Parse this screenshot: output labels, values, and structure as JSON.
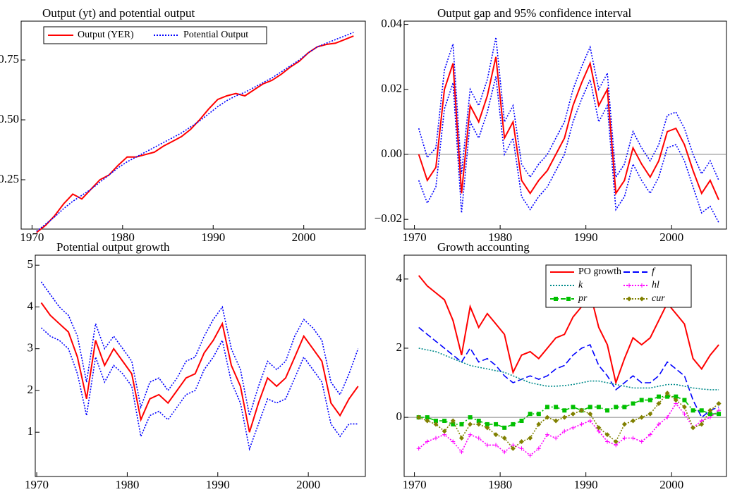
{
  "chart_data": [
    {
      "type": "line",
      "title": "Output (yt) and potential output",
      "legend": "upper left",
      "x": [
        1970.5,
        1971.5,
        1972.5,
        1973.5,
        1974.5,
        1975.5,
        1976.5,
        1977.5,
        1978.5,
        1979.5,
        1980.5,
        1981.5,
        1982.5,
        1983.5,
        1984.5,
        1985.5,
        1986.5,
        1987.5,
        1988.5,
        1989.5,
        1990.5,
        1991.5,
        1992.5,
        1993.5,
        1994.5,
        1995.5,
        1996.5,
        1997.5,
        1998.5,
        1999.5,
        2000.5,
        2001.5,
        2002.5,
        2003.5,
        2004.5,
        2005.5
      ],
      "xlim": [
        1968.8,
        2006.8
      ],
      "xticks": [
        1970,
        1980,
        1990,
        2000
      ],
      "ylim": [
        0.044,
        0.912
      ],
      "yticks": [
        0.25,
        {
          "value": 0.5,
          "label": "0.50"
        },
        0.75
      ],
      "series": [
        {
          "name": "Output (YER)",
          "color": "#ff0000",
          "style": "solid",
          "values": [
            0.03,
            0.06,
            0.1,
            0.15,
            0.19,
            0.17,
            0.21,
            0.25,
            0.27,
            0.31,
            0.345,
            0.345,
            0.355,
            0.365,
            0.39,
            0.41,
            0.43,
            0.46,
            0.5,
            0.545,
            0.585,
            0.6,
            0.61,
            0.6,
            0.625,
            0.65,
            0.665,
            0.69,
            0.72,
            0.745,
            0.78,
            0.805,
            0.815,
            0.82,
            0.835,
            0.85
          ]
        },
        {
          "name": "Potential Output",
          "color": "#0000ff",
          "style": "dotted",
          "values": [
            0.035,
            0.065,
            0.095,
            0.13,
            0.16,
            0.185,
            0.21,
            0.24,
            0.27,
            0.3,
            0.325,
            0.345,
            0.365,
            0.385,
            0.405,
            0.425,
            0.445,
            0.47,
            0.495,
            0.525,
            0.555,
            0.58,
            0.6,
            0.615,
            0.635,
            0.655,
            0.675,
            0.7,
            0.725,
            0.75,
            0.78,
            0.805,
            0.82,
            0.835,
            0.85,
            0.865
          ]
        }
      ]
    },
    {
      "type": "line",
      "title": "Output gap and 95% confidence interval",
      "hline": 0,
      "x": [
        1970.5,
        1971.5,
        1972.5,
        1973.5,
        1974.5,
        1975.5,
        1976.5,
        1977.5,
        1978.5,
        1979.5,
        1980.5,
        1981.5,
        1982.5,
        1983.5,
        1984.5,
        1985.5,
        1986.5,
        1987.5,
        1988.5,
        1989.5,
        1990.5,
        1991.5,
        1992.5,
        1993.5,
        1994.5,
        1995.5,
        1996.5,
        1997.5,
        1998.5,
        1999.5,
        2000.5,
        2001.5,
        2002.5,
        2003.5,
        2004.5,
        2005.5
      ],
      "xlim": [
        1968.8,
        2006.4
      ],
      "xticks": [
        1970,
        1980,
        1990,
        2000
      ],
      "ylim": [
        -0.023,
        0.041
      ],
      "yticks": [
        {
          "value": -0.02,
          "label": "−0.02"
        },
        {
          "value": 0,
          "label": "0.00"
        },
        0.02,
        0.04
      ],
      "series": [
        {
          "color": "#ff0000",
          "style": "solid",
          "values": [
            0.0,
            -0.008,
            -0.004,
            0.02,
            0.028,
            -0.012,
            0.015,
            0.01,
            0.018,
            0.03,
            0.005,
            0.01,
            -0.008,
            -0.012,
            -0.008,
            -0.005,
            0.0,
            0.005,
            0.015,
            0.022,
            0.028,
            0.015,
            0.02,
            -0.012,
            -0.008,
            0.002,
            -0.003,
            -0.007,
            -0.002,
            0.007,
            0.008,
            0.003,
            -0.005,
            -0.012,
            -0.008,
            -0.014
          ]
        },
        {
          "color": "#0000ff",
          "style": "dotted",
          "values": [
            0.008,
            -0.001,
            0.002,
            0.026,
            0.034,
            -0.006,
            0.02,
            0.015,
            0.023,
            0.036,
            0.01,
            0.015,
            -0.003,
            -0.007,
            -0.003,
            0.0,
            0.005,
            0.01,
            0.02,
            0.027,
            0.033,
            0.02,
            0.025,
            -0.007,
            -0.003,
            0.007,
            0.002,
            -0.002,
            0.003,
            0.012,
            0.013,
            0.008,
            0.0,
            -0.006,
            -0.002,
            -0.008
          ]
        },
        {
          "color": "#0000ff",
          "style": "dotted",
          "values": [
            -0.008,
            -0.015,
            -0.01,
            0.014,
            0.022,
            -0.018,
            0.01,
            0.005,
            0.013,
            0.024,
            0.0,
            0.005,
            -0.013,
            -0.017,
            -0.013,
            -0.01,
            -0.005,
            0.0,
            0.01,
            0.017,
            0.023,
            0.01,
            0.015,
            -0.017,
            -0.013,
            -0.003,
            -0.008,
            -0.012,
            -0.007,
            0.002,
            0.003,
            -0.002,
            -0.01,
            -0.018,
            -0.016,
            -0.021
          ]
        }
      ]
    },
    {
      "type": "line",
      "title": "Potential output growth",
      "x": [
        1970.5,
        1971.5,
        1972.5,
        1973.5,
        1974.5,
        1975.5,
        1976.5,
        1977.5,
        1978.5,
        1979.5,
        1980.5,
        1981.5,
        1982.5,
        1983.5,
        1984.5,
        1985.5,
        1986.5,
        1987.5,
        1988.5,
        1989.5,
        1990.5,
        1991.5,
        1992.5,
        1993.5,
        1994.5,
        1995.5,
        1996.5,
        1997.5,
        1998.5,
        1999.5,
        2000.5,
        2001.5,
        2002.5,
        2003.5,
        2004.5,
        2005.5
      ],
      "xlim": [
        1969.84,
        2006.3
      ],
      "xticks": [
        1970,
        1980,
        1990,
        2000
      ],
      "ylim": [
        -0.06,
        5.24
      ],
      "yticks": [
        1,
        2,
        3,
        4,
        5
      ],
      "series": [
        {
          "color": "#ff0000",
          "style": "solid",
          "values": [
            4.1,
            3.8,
            3.6,
            3.4,
            2.8,
            1.8,
            3.2,
            2.6,
            3.0,
            2.7,
            2.4,
            1.3,
            1.8,
            1.9,
            1.7,
            2.0,
            2.3,
            2.4,
            2.9,
            3.2,
            3.6,
            2.6,
            2.1,
            1.0,
            1.7,
            2.3,
            2.1,
            2.3,
            2.8,
            3.3,
            3.0,
            2.7,
            1.7,
            1.4,
            1.8,
            2.1
          ]
        },
        {
          "color": "#0000ff",
          "style": "dotted",
          "values": [
            4.6,
            4.3,
            4.0,
            3.8,
            3.3,
            2.2,
            3.6,
            3.0,
            3.3,
            3.0,
            2.7,
            1.6,
            2.2,
            2.3,
            2.0,
            2.3,
            2.7,
            2.8,
            3.3,
            3.7,
            4.0,
            3.0,
            2.5,
            1.4,
            2.1,
            2.7,
            2.5,
            2.7,
            3.3,
            3.7,
            3.5,
            3.2,
            2.2,
            1.9,
            2.4,
            3.0
          ]
        },
        {
          "color": "#0000ff",
          "style": "dotted",
          "values": [
            3.5,
            3.3,
            3.2,
            3.0,
            2.4,
            1.4,
            2.8,
            2.2,
            2.6,
            2.4,
            2.1,
            0.9,
            1.4,
            1.5,
            1.3,
            1.6,
            1.9,
            2.0,
            2.5,
            2.8,
            3.2,
            2.2,
            1.7,
            0.6,
            1.2,
            1.8,
            1.7,
            1.8,
            2.3,
            2.8,
            2.5,
            2.2,
            1.2,
            0.9,
            1.2,
            1.2
          ]
        }
      ]
    },
    {
      "type": "line",
      "title": "Growth accounting",
      "hline": 0,
      "legend": "upper right",
      "x": [
        1970.5,
        1971.5,
        1972.5,
        1973.5,
        1974.5,
        1975.5,
        1976.5,
        1977.5,
        1978.5,
        1979.5,
        1980.5,
        1981.5,
        1982.5,
        1983.5,
        1984.5,
        1985.5,
        1986.5,
        1987.5,
        1988.5,
        1989.5,
        1990.5,
        1991.5,
        1992.5,
        1993.5,
        1994.5,
        1995.5,
        1996.5,
        1997.5,
        1998.5,
        1999.5,
        2000.5,
        2001.5,
        2002.5,
        2003.5,
        2004.5,
        2005.5
      ],
      "xlim": [
        1968.8,
        2006.4
      ],
      "xticks": [
        1970,
        1980,
        1990,
        2000
      ],
      "ylim": [
        -1.71,
        4.69
      ],
      "yticks": [
        0,
        2,
        4
      ],
      "series": [
        {
          "name": "PO growth",
          "color": "#ff0000",
          "style": "solid",
          "values": [
            4.1,
            3.8,
            3.6,
            3.4,
            2.8,
            1.8,
            3.2,
            2.6,
            3.0,
            2.7,
            2.4,
            1.3,
            1.8,
            1.9,
            1.7,
            2.0,
            2.3,
            2.4,
            2.9,
            3.2,
            3.6,
            2.6,
            2.1,
            1.0,
            1.7,
            2.3,
            2.1,
            2.3,
            2.8,
            3.3,
            3.0,
            2.7,
            1.7,
            1.4,
            1.8,
            2.1
          ]
        },
        {
          "name": "f",
          "color": "#0000ff",
          "style": "dashed",
          "values": [
            2.6,
            2.4,
            2.2,
            2.0,
            1.8,
            1.6,
            2.0,
            1.6,
            1.7,
            1.5,
            1.2,
            1.0,
            1.1,
            1.2,
            1.1,
            1.2,
            1.4,
            1.5,
            1.8,
            2.0,
            2.1,
            1.5,
            1.2,
            0.8,
            1.0,
            1.2,
            1.0,
            1.0,
            1.2,
            1.6,
            1.4,
            1.2,
            0.5,
            0.0,
            0.2,
            0.3
          ]
        },
        {
          "name": "k",
          "color": "#008b8b",
          "style": "dotted",
          "values": [
            2.0,
            1.95,
            1.9,
            1.8,
            1.7,
            1.6,
            1.5,
            1.45,
            1.4,
            1.35,
            1.3,
            1.2,
            1.1,
            1.0,
            0.95,
            0.9,
            0.9,
            0.92,
            0.95,
            1.0,
            1.05,
            1.05,
            1.0,
            0.95,
            0.9,
            0.85,
            0.85,
            0.85,
            0.9,
            0.95,
            0.95,
            0.9,
            0.85,
            0.82,
            0.8,
            0.8
          ]
        },
        {
          "name": "hl",
          "color": "#ff00ff",
          "style": "dotted",
          "marker": "plus",
          "values": [
            -0.9,
            -0.7,
            -0.6,
            -0.5,
            -0.7,
            -1.0,
            -0.5,
            -0.6,
            -0.8,
            -0.8,
            -1.0,
            -0.8,
            -0.9,
            -1.1,
            -0.9,
            -0.5,
            -0.6,
            -0.4,
            -0.3,
            -0.2,
            -0.1,
            -0.4,
            -0.7,
            -0.8,
            -0.6,
            -0.6,
            -0.7,
            -0.5,
            -0.2,
            0.0,
            0.4,
            0.1,
            -0.3,
            -0.1,
            0.0,
            0.2
          ]
        },
        {
          "name": "pr",
          "color": "#00c000",
          "style": "dashdot",
          "marker": "square",
          "values": [
            0.0,
            0.0,
            -0.1,
            -0.1,
            -0.2,
            -0.2,
            0.0,
            -0.1,
            -0.2,
            -0.2,
            -0.3,
            -0.2,
            -0.1,
            0.1,
            0.1,
            0.3,
            0.3,
            0.2,
            0.3,
            0.2,
            0.3,
            0.3,
            0.2,
            0.3,
            0.3,
            0.4,
            0.5,
            0.5,
            0.6,
            0.6,
            0.6,
            0.5,
            0.2,
            0.2,
            0.1,
            0.1
          ]
        },
        {
          "name": "cur",
          "color": "#808000",
          "style": "dotted",
          "marker": "diamond",
          "values": [
            0.0,
            -0.1,
            -0.2,
            -0.4,
            -0.1,
            -0.6,
            -0.2,
            -0.2,
            -0.3,
            -0.5,
            -0.6,
            -0.9,
            -0.7,
            -0.6,
            -0.2,
            0.0,
            -0.1,
            0.0,
            0.1,
            0.2,
            0.1,
            -0.3,
            -0.5,
            -0.7,
            -0.2,
            -0.1,
            0.0,
            0.1,
            0.4,
            0.7,
            0.5,
            0.3,
            -0.3,
            -0.2,
            0.2,
            0.4
          ]
        }
      ]
    }
  ]
}
